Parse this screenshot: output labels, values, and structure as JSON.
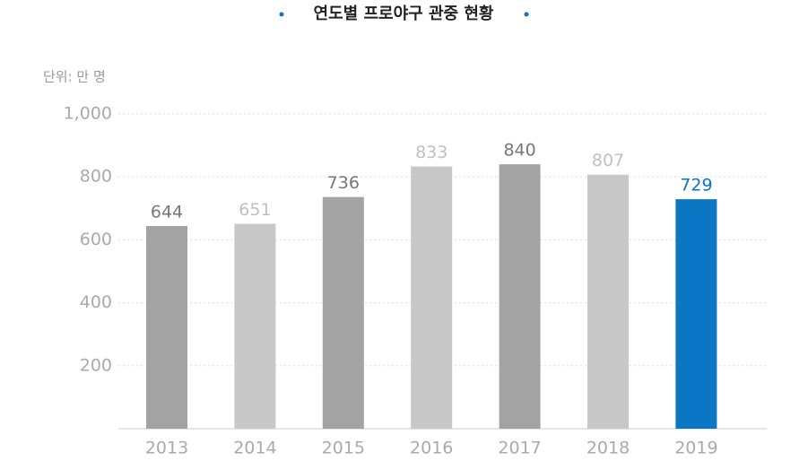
{
  "chart_data": {
    "type": "bar",
    "title": "연도별 프로야구 관중 현황",
    "unit_label": "단위: 만 명",
    "categories": [
      "2013",
      "2014",
      "2015",
      "2016",
      "2017",
      "2018",
      "2019"
    ],
    "values": [
      644,
      651,
      736,
      833,
      840,
      807,
      729
    ],
    "colors": [
      "#a3a3a3",
      "#c8c8c8",
      "#a3a3a3",
      "#c8c8c8",
      "#a3a3a3",
      "#c8c8c8",
      "#0a76c4"
    ],
    "label_colors": [
      "#777777",
      "#c0c0c0",
      "#777777",
      "#c0c0c0",
      "#777777",
      "#c0c0c0",
      "#0a76c4"
    ],
    "ylim": [
      0,
      1000
    ],
    "yticks": [
      200,
      400,
      600,
      800,
      {
        "value": 1000,
        "label": "1,000"
      }
    ],
    "grid": true
  }
}
